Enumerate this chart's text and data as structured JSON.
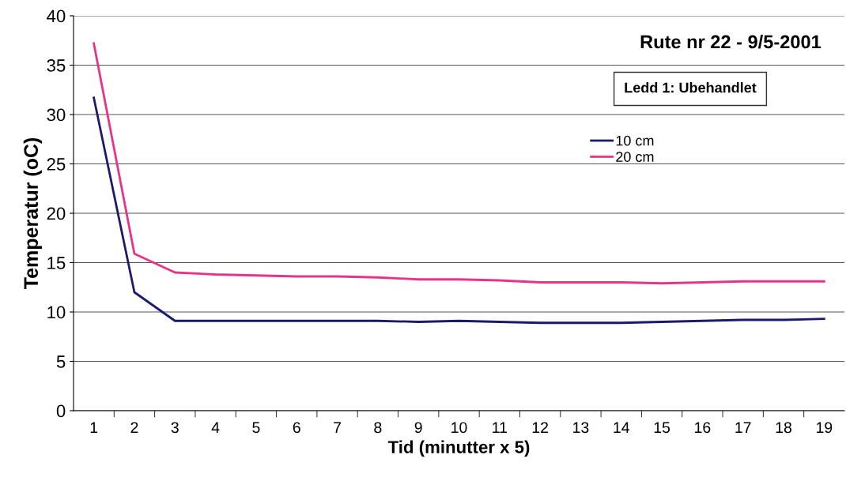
{
  "chart_data": {
    "type": "line",
    "title": "Rute nr 22 - 9/5-2001",
    "xlabel": "Tid (minutter x 5)",
    "ylabel": "Temperatur (oC)",
    "annotations": [
      "Ledd 1: Ubehandlet"
    ],
    "categories": [
      "1",
      "2",
      "3",
      "4",
      "5",
      "6",
      "7",
      "8",
      "9",
      "10",
      "11",
      "12",
      "13",
      "14",
      "15",
      "16",
      "17",
      "18",
      "19"
    ],
    "series": [
      {
        "name": "10 cm",
        "color": "#1a1a6e",
        "values": [
          31.7,
          12.0,
          9.1,
          9.1,
          9.1,
          9.1,
          9.1,
          9.1,
          9.0,
          9.1,
          9.0,
          8.9,
          8.9,
          8.9,
          9.0,
          9.1,
          9.2,
          9.2,
          9.3
        ]
      },
      {
        "name": "20 cm",
        "color": "#e8338a",
        "values": [
          37.2,
          15.9,
          14.0,
          13.8,
          13.7,
          13.6,
          13.6,
          13.5,
          13.3,
          13.3,
          13.2,
          13.0,
          13.0,
          13.0,
          12.9,
          13.0,
          13.1,
          13.1,
          13.1
        ]
      }
    ],
    "ylim": [
      0,
      40
    ],
    "yticks": [
      0,
      5,
      10,
      15,
      20,
      25,
      30,
      35,
      40
    ],
    "grid": "y",
    "legend": "top right",
    "marker": "none",
    "line_style": "solid"
  }
}
